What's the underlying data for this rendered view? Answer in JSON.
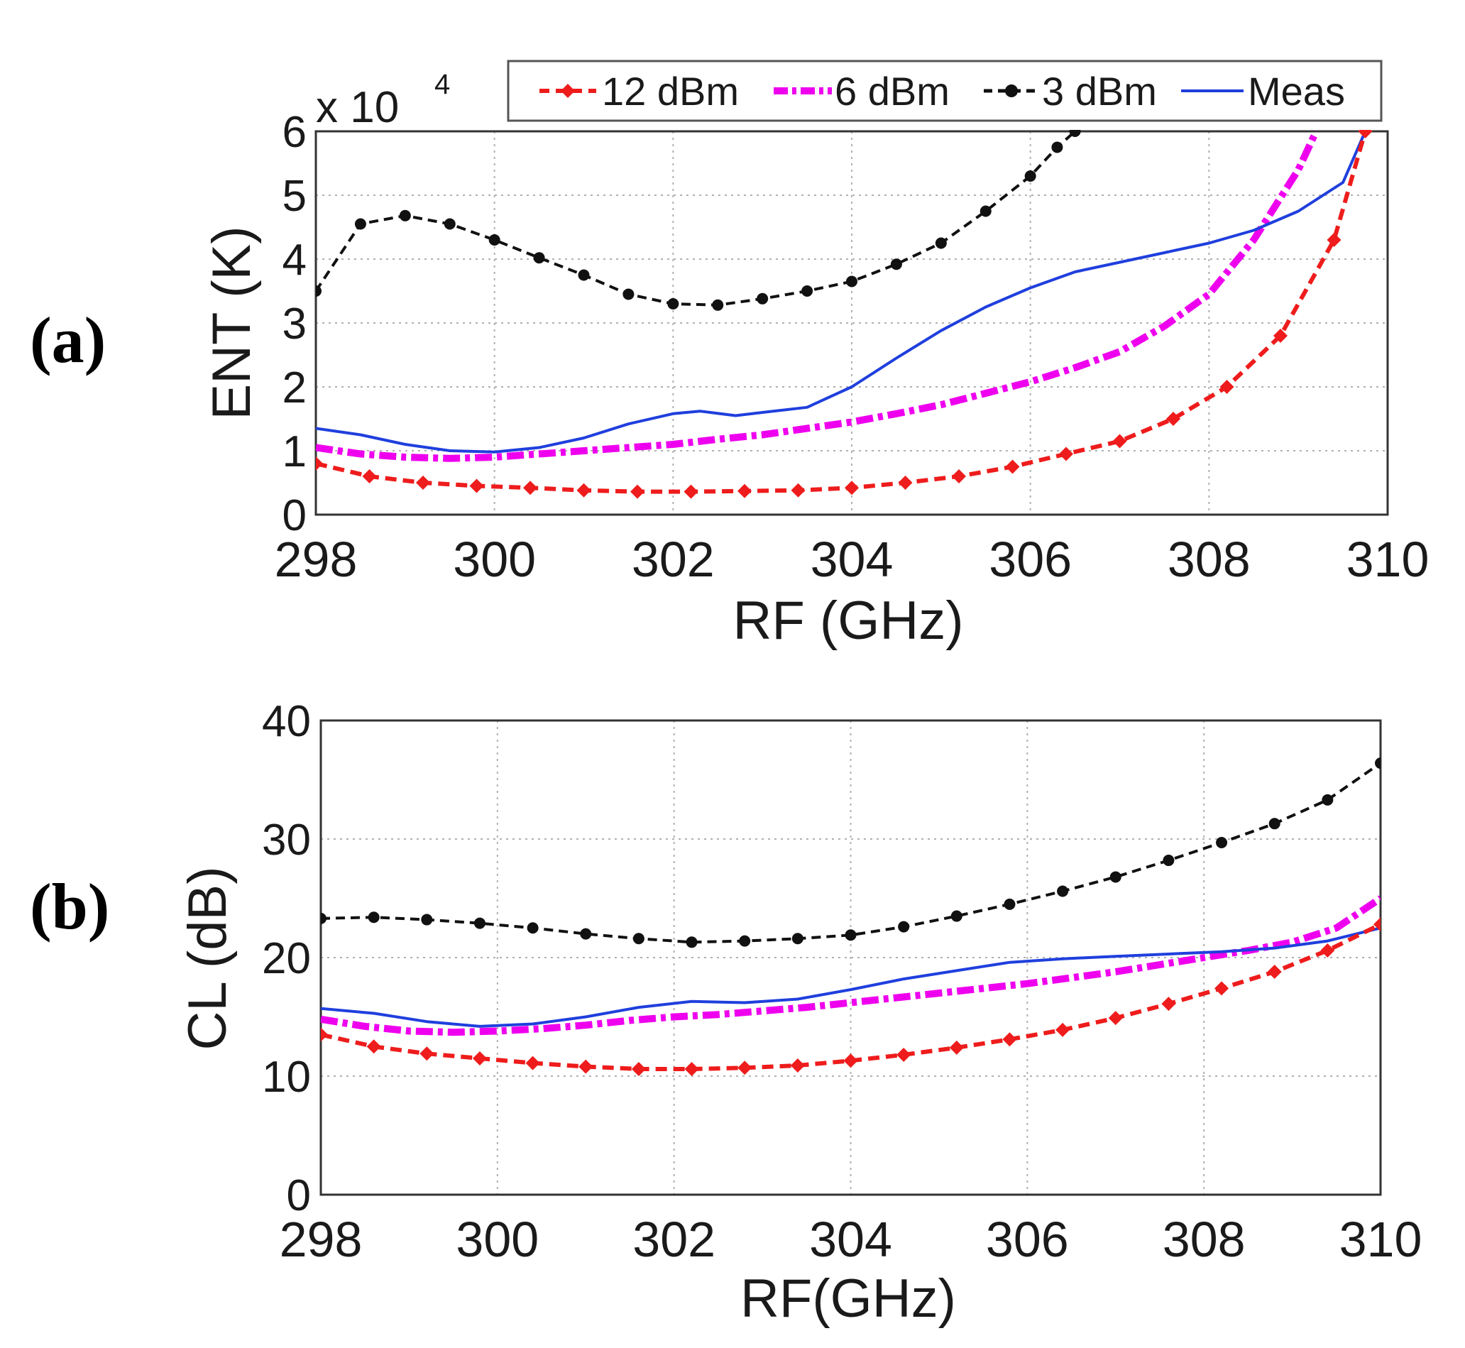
{
  "figure": {
    "panel_a_label": "(a)",
    "panel_b_label": "(b)"
  },
  "legend": [
    {
      "name": "12 dBm",
      "color": "#ee1c1c",
      "style": "dash-diamond"
    },
    {
      "name": "6 dBm",
      "color": "#ee00ee",
      "style": "dashdot-thick"
    },
    {
      "name": "3 dBm",
      "color": "#111111",
      "style": "dash-circle"
    },
    {
      "name": "Meas",
      "color": "#1f3fdd",
      "style": "solid"
    }
  ],
  "chart_data": [
    {
      "type": "line",
      "panel": "(a)",
      "title": "",
      "xlabel": "RF (GHz)",
      "ylabel": "ENT (K)",
      "y_multiplier_label": "x 10",
      "y_multiplier_exponent": "4",
      "xlim": [
        298,
        310
      ],
      "ylim": [
        0,
        6
      ],
      "xticks": [
        "298",
        "300",
        "302",
        "304",
        "306",
        "308",
        "310"
      ],
      "yticks": [
        "0",
        "1",
        "2",
        "3",
        "4",
        "5",
        "6"
      ],
      "grid": true,
      "legend_position": "top",
      "series": [
        {
          "name": "12 dBm",
          "x": [
            298,
            298.6,
            299.2,
            299.8,
            300.4,
            301,
            301.6,
            302.2,
            302.8,
            303.4,
            304,
            304.6,
            305.2,
            305.8,
            306.4,
            307,
            307.6,
            308.2,
            308.8,
            309.4,
            309.75
          ],
          "y": [
            0.8,
            0.6,
            0.5,
            0.45,
            0.42,
            0.38,
            0.36,
            0.36,
            0.37,
            0.38,
            0.42,
            0.5,
            0.6,
            0.75,
            0.95,
            1.15,
            1.5,
            2.0,
            2.8,
            4.3,
            6.0
          ]
        },
        {
          "name": "6 dBm",
          "x": [
            298,
            298.5,
            299,
            299.5,
            300,
            300.5,
            301,
            301.5,
            302,
            302.5,
            303,
            303.5,
            304,
            304.5,
            305,
            305.5,
            306,
            306.5,
            307,
            307.5,
            308,
            308.5,
            309,
            309.2
          ],
          "y": [
            1.05,
            0.95,
            0.9,
            0.88,
            0.9,
            0.95,
            1.0,
            1.05,
            1.1,
            1.18,
            1.25,
            1.35,
            1.45,
            1.58,
            1.72,
            1.9,
            2.08,
            2.3,
            2.55,
            2.95,
            3.45,
            4.3,
            5.4,
            6.0
          ]
        },
        {
          "name": "3 dBm",
          "x": [
            298,
            298.5,
            299,
            299.5,
            300,
            300.5,
            301,
            301.5,
            302,
            302.5,
            303,
            303.5,
            304,
            304.5,
            305,
            305.5,
            306,
            306.3,
            306.5
          ],
          "y": [
            3.5,
            4.55,
            4.68,
            4.55,
            4.3,
            4.02,
            3.75,
            3.45,
            3.3,
            3.28,
            3.38,
            3.5,
            3.65,
            3.92,
            4.25,
            4.75,
            5.3,
            5.75,
            6.0
          ]
        },
        {
          "name": "Meas",
          "x": [
            298,
            298.5,
            299,
            299.5,
            300,
            300.5,
            301,
            301.5,
            302,
            302.3,
            302.7,
            303,
            303.5,
            304,
            304.5,
            305,
            305.5,
            306,
            306.5,
            307,
            307.5,
            308,
            308.5,
            309,
            309.5,
            309.75
          ],
          "y": [
            1.35,
            1.25,
            1.1,
            1.0,
            0.98,
            1.05,
            1.2,
            1.42,
            1.58,
            1.62,
            1.55,
            1.6,
            1.68,
            2.0,
            2.45,
            2.88,
            3.25,
            3.55,
            3.8,
            3.95,
            4.1,
            4.25,
            4.45,
            4.75,
            5.2,
            6.0
          ]
        }
      ]
    },
    {
      "type": "line",
      "panel": "(b)",
      "title": "",
      "xlabel": "RF(GHz)",
      "ylabel": "CL (dB)",
      "xlim": [
        298,
        310
      ],
      "ylim": [
        0,
        40
      ],
      "xticks": [
        "298",
        "300",
        "302",
        "304",
        "306",
        "308",
        "310"
      ],
      "yticks": [
        "0",
        "10",
        "20",
        "30",
        "40"
      ],
      "grid": true,
      "series": [
        {
          "name": "12 dBm",
          "x": [
            298,
            298.6,
            299.2,
            299.8,
            300.4,
            301,
            301.6,
            302.2,
            302.8,
            303.4,
            304,
            304.6,
            305.2,
            305.8,
            306.4,
            307,
            307.6,
            308.2,
            308.8,
            309.4,
            310
          ],
          "y": [
            13.5,
            12.5,
            11.9,
            11.5,
            11.1,
            10.8,
            10.6,
            10.6,
            10.7,
            10.9,
            11.3,
            11.8,
            12.4,
            13.1,
            13.9,
            14.9,
            16.1,
            17.4,
            18.8,
            20.6,
            22.8
          ]
        },
        {
          "name": "6 dBm",
          "x": [
            298,
            298.5,
            299,
            299.5,
            300,
            300.5,
            301,
            301.5,
            302,
            302.5,
            303,
            303.5,
            304,
            304.5,
            305,
            305.5,
            306,
            306.5,
            307,
            307.5,
            308,
            308.5,
            309,
            309.5,
            310
          ],
          "y": [
            14.8,
            14.2,
            13.8,
            13.7,
            13.8,
            14.0,
            14.3,
            14.7,
            15.0,
            15.2,
            15.5,
            15.8,
            16.2,
            16.6,
            17.0,
            17.4,
            17.8,
            18.3,
            18.8,
            19.4,
            20.0,
            20.6,
            21.3,
            22.5,
            25.0
          ]
        },
        {
          "name": "3 dBm",
          "x": [
            298,
            298.6,
            299.2,
            299.8,
            300.4,
            301,
            301.6,
            302.2,
            302.8,
            303.4,
            304,
            304.6,
            305.2,
            305.8,
            306.4,
            307,
            307.6,
            308.2,
            308.8,
            309.4,
            310
          ],
          "y": [
            23.3,
            23.4,
            23.2,
            22.9,
            22.5,
            22.0,
            21.6,
            21.3,
            21.4,
            21.6,
            21.9,
            22.6,
            23.5,
            24.5,
            25.6,
            26.8,
            28.2,
            29.7,
            31.3,
            33.3,
            36.4
          ]
        },
        {
          "name": "Meas",
          "x": [
            298,
            298.6,
            299.2,
            299.8,
            300.4,
            301,
            301.6,
            302.2,
            302.8,
            303.4,
            304,
            304.6,
            305.2,
            305.8,
            306.4,
            307,
            307.6,
            308.2,
            308.8,
            309.4,
            310
          ],
          "y": [
            15.7,
            15.3,
            14.6,
            14.2,
            14.4,
            15.0,
            15.8,
            16.3,
            16.2,
            16.5,
            17.3,
            18.2,
            18.9,
            19.6,
            19.9,
            20.1,
            20.3,
            20.5,
            20.8,
            21.4,
            22.5
          ]
        }
      ]
    }
  ]
}
